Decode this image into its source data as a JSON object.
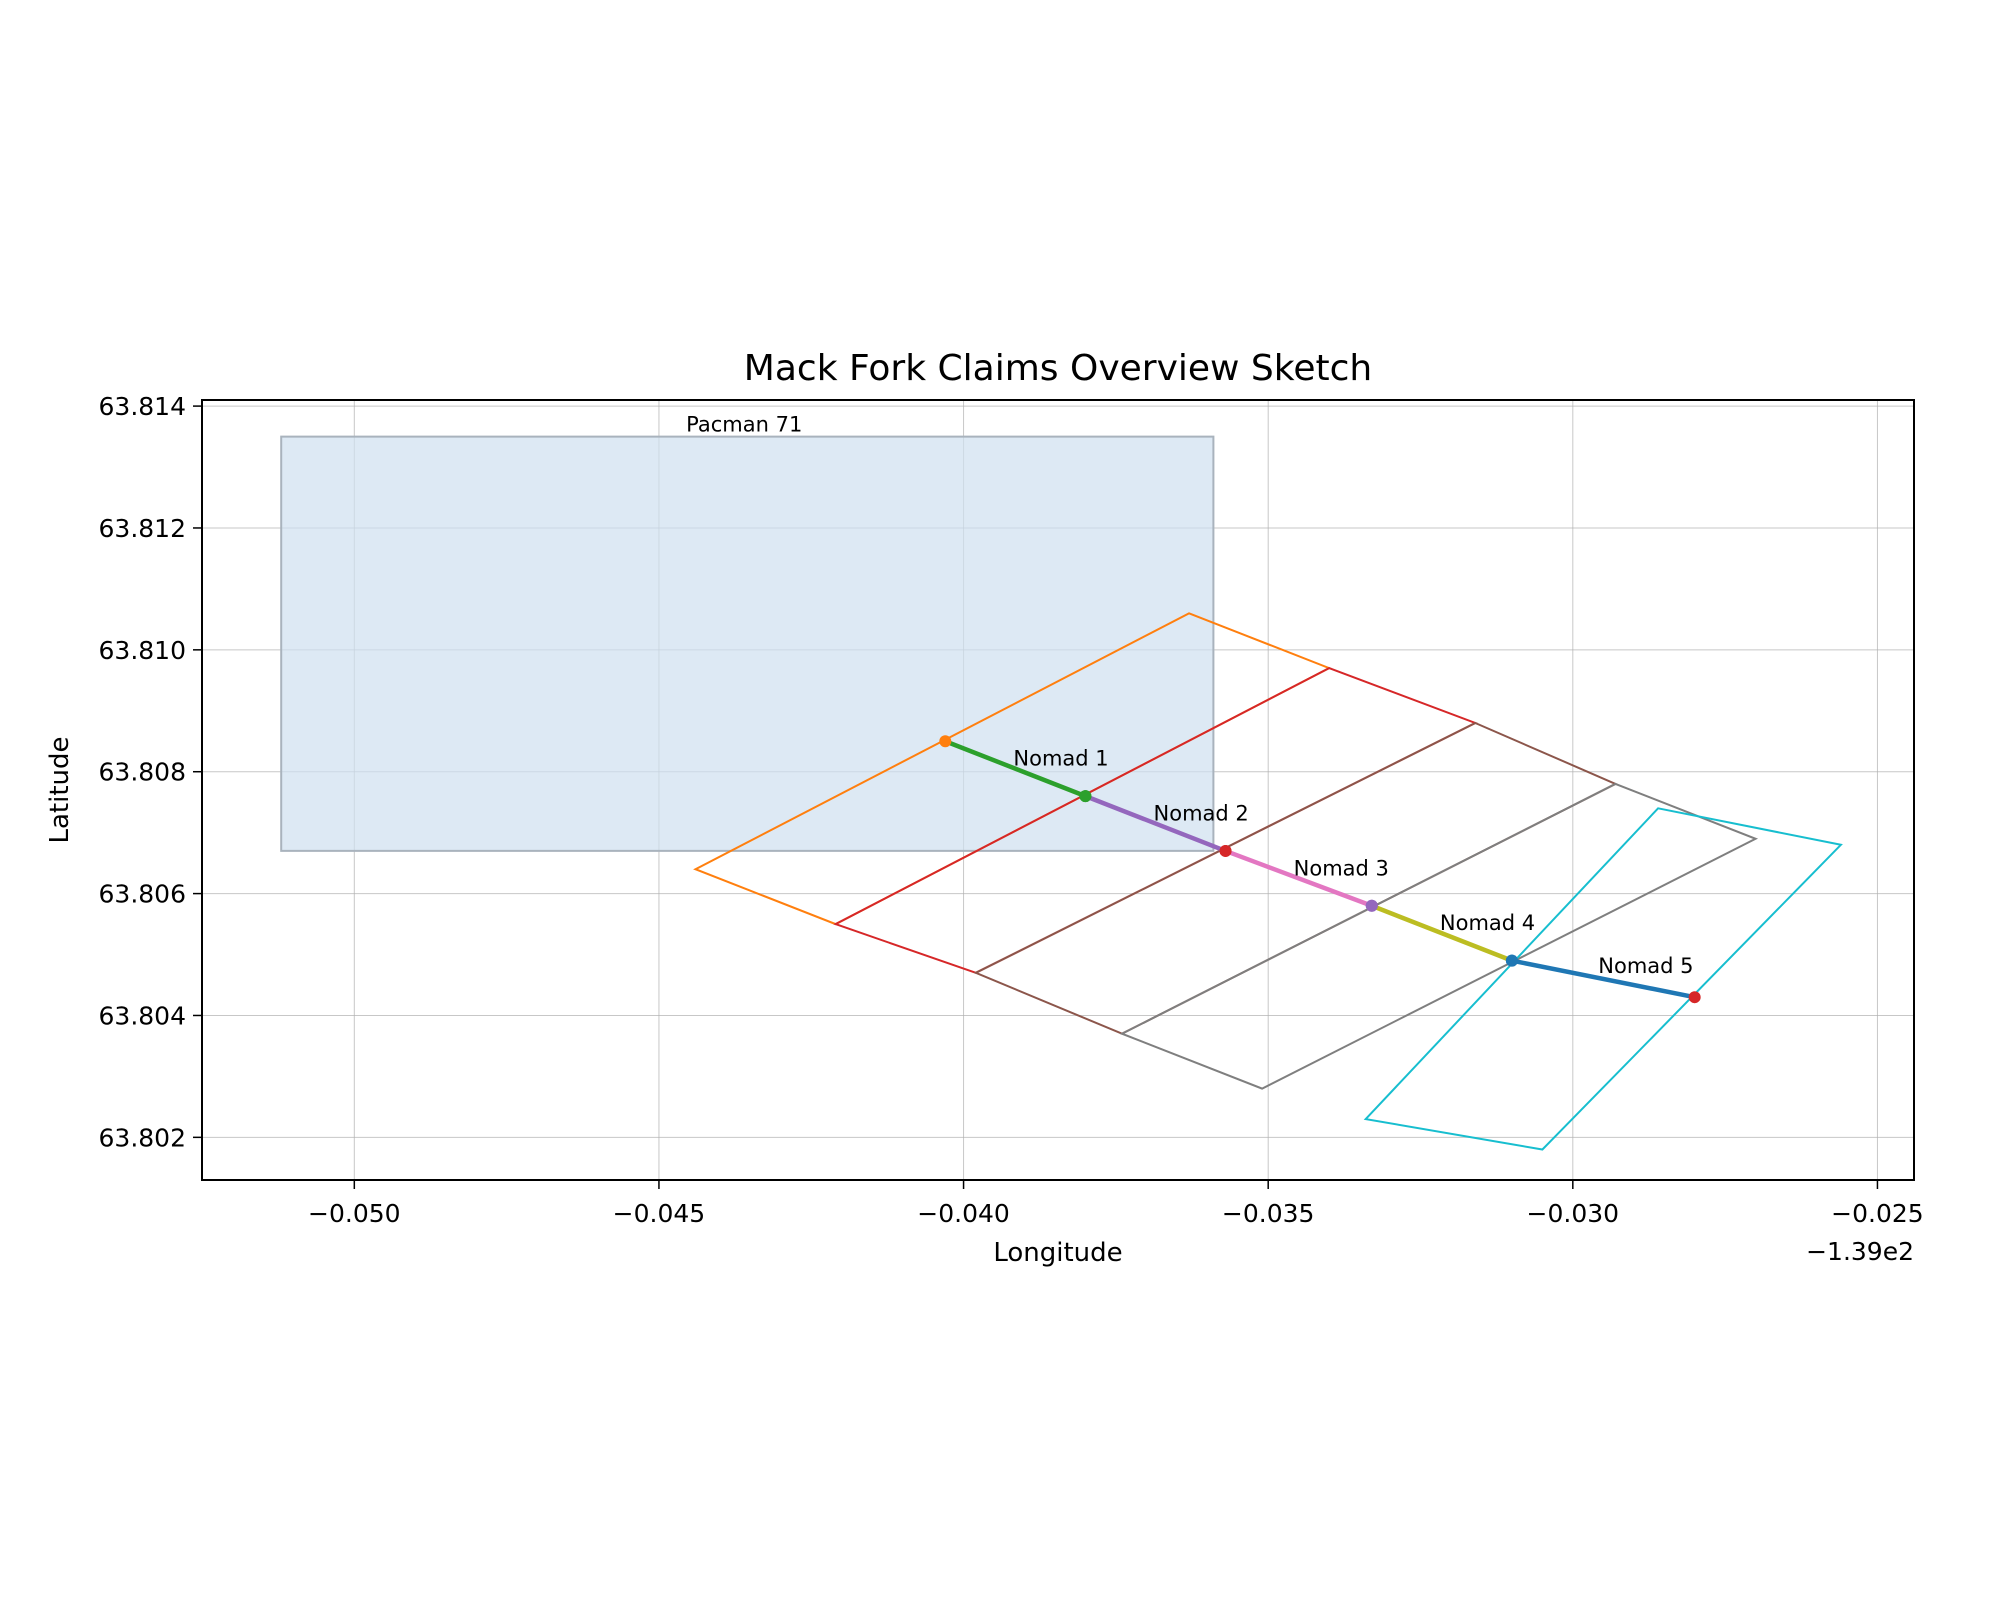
{
  "chart_data": {
    "type": "map",
    "title": "Mack Fork Claims Overview Sketch",
    "xlabel": "Longitude",
    "ylabel": "Latitude",
    "x_offset_label": "−1.39e2",
    "xlim": [
      -139.0525,
      -139.0244
    ],
    "ylim": [
      63.8013,
      63.8141
    ],
    "x_ticks": [
      {
        "value": -139.05,
        "label": "−0.050"
      },
      {
        "value": -139.045,
        "label": "−0.045"
      },
      {
        "value": -139.04,
        "label": "−0.040"
      },
      {
        "value": -139.035,
        "label": "−0.035"
      },
      {
        "value": -139.03,
        "label": "−0.030"
      },
      {
        "value": -139.025,
        "label": "−0.025"
      }
    ],
    "y_ticks": [
      {
        "value": 63.802,
        "label": "63.802"
      },
      {
        "value": 63.804,
        "label": "63.804"
      },
      {
        "value": 63.806,
        "label": "63.806"
      },
      {
        "value": 63.808,
        "label": "63.808"
      },
      {
        "value": 63.81,
        "label": "63.810"
      },
      {
        "value": 63.812,
        "label": "63.812"
      },
      {
        "value": 63.814,
        "label": "63.814"
      }
    ],
    "grid": true,
    "areas": [
      {
        "name": "Pacman 71",
        "fill": "#cfe0ef",
        "stroke": "#a9b3bd",
        "points": [
          [
            -139.0512,
            63.8067
          ],
          [
            -139.0359,
            63.8067
          ],
          [
            -139.0359,
            63.8135
          ],
          [
            -139.0512,
            63.8135
          ]
        ]
      }
    ],
    "polygons": [
      {
        "color": "#ff7f0e",
        "points": [
          [
            -139.0363,
            63.8106
          ],
          [
            -139.034,
            63.8097
          ],
          [
            -139.0421,
            63.8055
          ],
          [
            -139.0444,
            63.8064
          ]
        ]
      },
      {
        "color": "#d62728",
        "points": [
          [
            -139.034,
            63.8097
          ],
          [
            -139.0316,
            63.8088
          ],
          [
            -139.0398,
            63.8047
          ],
          [
            -139.0421,
            63.8055
          ]
        ]
      },
      {
        "color": "#8c564b",
        "points": [
          [
            -139.0316,
            63.8088
          ],
          [
            -139.0293,
            63.8078
          ],
          [
            -139.0374,
            63.8037
          ],
          [
            -139.0398,
            63.8047
          ]
        ]
      },
      {
        "color": "#7f7f7f",
        "points": [
          [
            -139.0293,
            63.8078
          ],
          [
            -139.027,
            63.8069
          ],
          [
            -139.0351,
            63.8028
          ],
          [
            -139.0374,
            63.8037
          ]
        ]
      },
      {
        "color": "#17becf",
        "points": [
          [
            -139.0286,
            63.8074
          ],
          [
            -139.0256,
            63.8068
          ],
          [
            -139.0305,
            63.8018
          ],
          [
            -139.0334,
            63.8023
          ]
        ]
      }
    ],
    "claim_lines": [
      {
        "name": "Nomad 1",
        "color": "#2ca02c",
        "start": [
          -139.0403,
          63.8085
        ],
        "end": [
          -139.038,
          63.8076
        ],
        "start_marker": "#ff7f0e",
        "end_marker": "#2ca02c",
        "label_at": [
          -139.0384,
          63.8081
        ]
      },
      {
        "name": "Nomad 2",
        "color": "#9467bd",
        "start": [
          -139.038,
          63.8076
        ],
        "end": [
          -139.0357,
          63.8067
        ],
        "start_marker": "#2ca02c",
        "end_marker": "#d62728",
        "label_at": [
          -139.0361,
          63.8072
        ]
      },
      {
        "name": "Nomad 3",
        "color": "#e377c2",
        "start": [
          -139.0357,
          63.8067
        ],
        "end": [
          -139.0333,
          63.8058
        ],
        "start_marker": "#d62728",
        "end_marker": "#9467bd",
        "label_at": [
          -139.0338,
          63.8063
        ]
      },
      {
        "name": "Nomad 4",
        "color": "#bcbd22",
        "start": [
          -139.0333,
          63.8058
        ],
        "end": [
          -139.031,
          63.8049
        ],
        "start_marker": "#9467bd",
        "end_marker": "#1f77b4",
        "label_at": [
          -139.0314,
          63.8054
        ]
      },
      {
        "name": "Nomad 5",
        "color": "#1f77b4",
        "start": [
          -139.031,
          63.8049
        ],
        "end": [
          -139.028,
          63.8043
        ],
        "start_marker": "#1f77b4",
        "end_marker": "#d62728",
        "label_at": [
          -139.0288,
          63.8047
        ]
      }
    ],
    "area_labels": [
      {
        "text": "Pacman 71",
        "at": [
          -139.0436,
          63.8137
        ]
      }
    ]
  }
}
